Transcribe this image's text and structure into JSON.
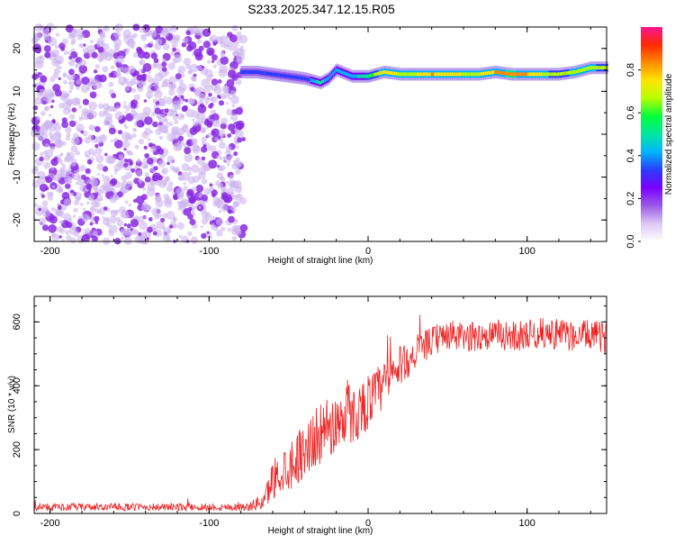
{
  "title": "S233.2025.347.12.15.R05",
  "chart_data": [
    {
      "type": "heatmap",
      "xlabel": "Height of straight line (km)",
      "ylabel": "Frequency (Hz)",
      "xlim": [
        -210,
        150
      ],
      "ylim": [
        -25,
        25
      ],
      "xticks": [
        -200,
        -100,
        0,
        100
      ],
      "yticks": [
        -20,
        -10,
        0,
        10,
        20
      ],
      "colorbar": {
        "label": "Normalized spectral amplitude",
        "ticks": [
          0.0,
          0.2,
          0.4,
          0.6,
          0.8
        ],
        "range": [
          0,
          1
        ],
        "colors": [
          "#ffffff",
          "#dcc8f5",
          "#9b59e6",
          "#7a00ff",
          "#2a3cff",
          "#00b4ff",
          "#00e6a0",
          "#00ff3c",
          "#b4ff00",
          "#ffe600",
          "#ff8c00",
          "#ff2a00",
          "#ff1493"
        ]
      },
      "noise_region": {
        "x_range": [
          -210,
          -78
        ],
        "freq_range": [
          -25,
          25
        ],
        "amplitude": 0.15
      },
      "signal_track": {
        "x": [
          -80,
          -70,
          -60,
          -50,
          -40,
          -30,
          -25,
          -20,
          -10,
          0,
          10,
          20,
          30,
          40,
          50,
          60,
          70,
          80,
          90,
          100,
          110,
          120,
          130,
          140,
          150
        ],
        "freq": [
          14.5,
          14.5,
          14.0,
          13.5,
          13.0,
          12.0,
          13.0,
          15.0,
          13.5,
          13.5,
          14.5,
          14.0,
          14.0,
          14.0,
          14.0,
          14.0,
          14.0,
          14.5,
          14.0,
          14.0,
          14.0,
          14.0,
          14.5,
          15.5,
          15.5
        ],
        "amplitude": [
          0.3,
          0.35,
          0.3,
          0.35,
          0.3,
          0.5,
          0.4,
          0.4,
          0.4,
          0.55,
          0.75,
          0.7,
          0.7,
          0.8,
          0.75,
          0.7,
          0.7,
          0.8,
          0.85,
          0.8,
          0.7,
          0.65,
          0.7,
          0.7,
          0.65
        ]
      }
    },
    {
      "type": "line",
      "xlabel": "Height of straight line (km)",
      "ylabel": "SNR (10 * v/v)",
      "xlim": [
        -210,
        150
      ],
      "ylim": [
        0,
        680
      ],
      "xticks": [
        -200,
        -100,
        0,
        100
      ],
      "yticks": [
        0,
        200,
        400,
        600
      ],
      "color": "#ee2222",
      "series": [
        {
          "name": "SNR",
          "x": [
            -210,
            -150,
            -100,
            -75,
            -65,
            -60,
            -50,
            -40,
            -30,
            -20,
            -13,
            -10,
            0,
            10,
            20,
            30,
            40,
            50,
            60,
            70,
            80,
            90,
            100,
            110,
            120,
            130,
            140,
            150
          ],
          "values": [
            20,
            20,
            20,
            20,
            40,
            110,
            150,
            200,
            250,
            280,
            330,
            300,
            350,
            400,
            460,
            500,
            540,
            560,
            550,
            555,
            560,
            555,
            560,
            565,
            560,
            555,
            560,
            550
          ],
          "spread": [
            15,
            15,
            15,
            15,
            40,
            80,
            100,
            110,
            120,
            120,
            130,
            110,
            110,
            100,
            80,
            60,
            60,
            60,
            60,
            60,
            60,
            60,
            60,
            60,
            60,
            60,
            60,
            60
          ]
        }
      ]
    }
  ]
}
